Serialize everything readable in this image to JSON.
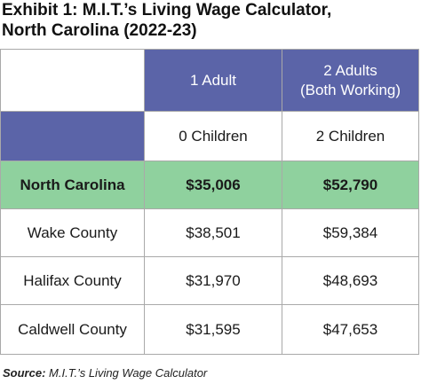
{
  "title": {
    "line1": "Exhibit 1: M.I.T.’s Living Wage Calculator,",
    "line2": "North Carolina (2022-23)"
  },
  "table": {
    "columns": [
      {
        "line1": "1 Adult",
        "line2": ""
      },
      {
        "line1": "2 Adults",
        "line2": "(Both Working)"
      }
    ],
    "subheaders": [
      "0 Children",
      "2 Children"
    ],
    "rows": [
      {
        "name": "North Carolina",
        "values": [
          "$35,006",
          "$52,790"
        ]
      },
      {
        "name": "Wake County",
        "values": [
          "$38,501",
          "$59,384"
        ]
      },
      {
        "name": "Halifax County",
        "values": [
          "$31,970",
          "$48,693"
        ]
      },
      {
        "name": "Caldwell County",
        "values": [
          "$31,595",
          "$47,653"
        ]
      }
    ]
  },
  "source": {
    "label": "Source:",
    "text": "M.I.T.’s Living Wage Calculator"
  },
  "colors": {
    "header_blue": "#5b64a8",
    "highlight_green": "#8fd19e",
    "highlight_text": "#0e5a23"
  }
}
